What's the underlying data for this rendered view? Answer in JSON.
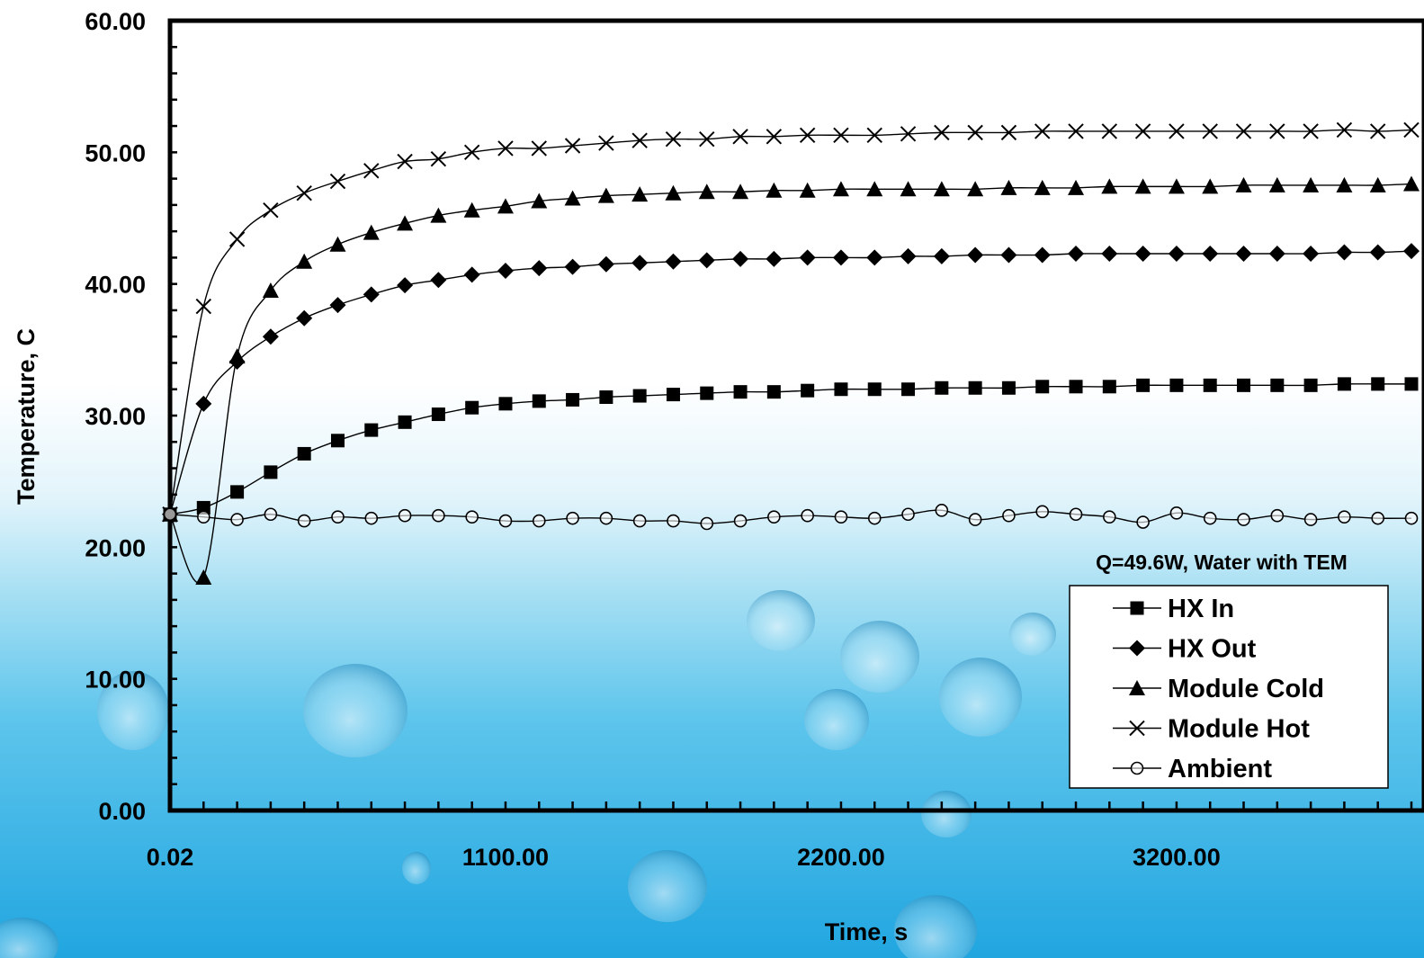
{
  "chart_data": {
    "type": "line",
    "annotation": "Q=49.6W, Water with TEM",
    "xlabel": "Time, s",
    "ylabel": "Temperature, C",
    "xlim": [
      0,
      3700
    ],
    "ylim": [
      0,
      60
    ],
    "x_tick_labels": [
      {
        "value": 0,
        "label": "0.02"
      },
      {
        "value": 1000,
        "label": "1100.00"
      },
      {
        "value": 2000,
        "label": "2200.00"
      },
      {
        "value": 3000,
        "label": "3200.00"
      }
    ],
    "y_tick_labels": [
      {
        "value": 0,
        "label": "0.00"
      },
      {
        "value": 10,
        "label": "10.00"
      },
      {
        "value": 20,
        "label": "20.00"
      },
      {
        "value": 30,
        "label": "30.00"
      },
      {
        "value": 40,
        "label": "40.00"
      },
      {
        "value": 50,
        "label": "50.00"
      },
      {
        "value": 60,
        "label": "60.00"
      }
    ],
    "legend_position": "bottom-right",
    "grid": false,
    "x": [
      0,
      100,
      200,
      300,
      400,
      500,
      600,
      700,
      800,
      900,
      1000,
      1100,
      1200,
      1300,
      1400,
      1500,
      1600,
      1700,
      1800,
      1900,
      2000,
      2100,
      2200,
      2300,
      2400,
      2500,
      2600,
      2700,
      2800,
      2900,
      3000,
      3100,
      3200,
      3300,
      3400,
      3500,
      3600,
      3700
    ],
    "series": [
      {
        "name": "HX In",
        "marker": "square",
        "values": [
          22.5,
          23.0,
          24.2,
          25.7,
          27.1,
          28.1,
          28.9,
          29.5,
          30.1,
          30.6,
          30.9,
          31.1,
          31.2,
          31.4,
          31.5,
          31.6,
          31.7,
          31.8,
          31.8,
          31.9,
          32.0,
          32.0,
          32.0,
          32.1,
          32.1,
          32.1,
          32.2,
          32.2,
          32.2,
          32.3,
          32.3,
          32.3,
          32.3,
          32.3,
          32.3,
          32.4,
          32.4,
          32.4
        ]
      },
      {
        "name": "HX Out",
        "marker": "diamond",
        "values": [
          22.5,
          30.9,
          34.1,
          36.0,
          37.4,
          38.4,
          39.2,
          39.9,
          40.3,
          40.7,
          41.0,
          41.2,
          41.3,
          41.5,
          41.6,
          41.7,
          41.8,
          41.9,
          41.9,
          42.0,
          42.0,
          42.0,
          42.1,
          42.1,
          42.2,
          42.2,
          42.2,
          42.3,
          42.3,
          42.3,
          42.3,
          42.3,
          42.3,
          42.3,
          42.3,
          42.4,
          42.4,
          42.5
        ]
      },
      {
        "name": "Module Cold",
        "marker": "triangle",
        "values": [
          22.5,
          17.7,
          34.5,
          39.5,
          41.7,
          43.0,
          43.9,
          44.6,
          45.2,
          45.6,
          45.9,
          46.3,
          46.5,
          46.7,
          46.8,
          46.9,
          47.0,
          47.0,
          47.1,
          47.1,
          47.2,
          47.2,
          47.2,
          47.2,
          47.2,
          47.3,
          47.3,
          47.3,
          47.4,
          47.4,
          47.4,
          47.4,
          47.5,
          47.5,
          47.5,
          47.5,
          47.5,
          47.6
        ]
      },
      {
        "name": "Module Hot",
        "marker": "x",
        "values": [
          22.5,
          38.3,
          43.4,
          45.6,
          46.9,
          47.8,
          48.6,
          49.3,
          49.5,
          50.0,
          50.3,
          50.3,
          50.5,
          50.7,
          50.9,
          51.0,
          51.0,
          51.2,
          51.2,
          51.3,
          51.3,
          51.3,
          51.4,
          51.5,
          51.5,
          51.5,
          51.6,
          51.6,
          51.6,
          51.6,
          51.6,
          51.6,
          51.6,
          51.6,
          51.6,
          51.7,
          51.6,
          51.7
        ]
      },
      {
        "name": "Ambient",
        "marker": "circle",
        "values": [
          22.5,
          22.3,
          22.1,
          22.5,
          22.0,
          22.3,
          22.2,
          22.4,
          22.4,
          22.3,
          22.0,
          22.0,
          22.2,
          22.2,
          22.0,
          22.0,
          21.8,
          22.0,
          22.3,
          22.4,
          22.3,
          22.2,
          22.5,
          22.8,
          22.1,
          22.4,
          22.7,
          22.5,
          22.3,
          21.9,
          22.6,
          22.2,
          22.1,
          22.4,
          22.1,
          22.3,
          22.2,
          22.2
        ]
      }
    ]
  }
}
